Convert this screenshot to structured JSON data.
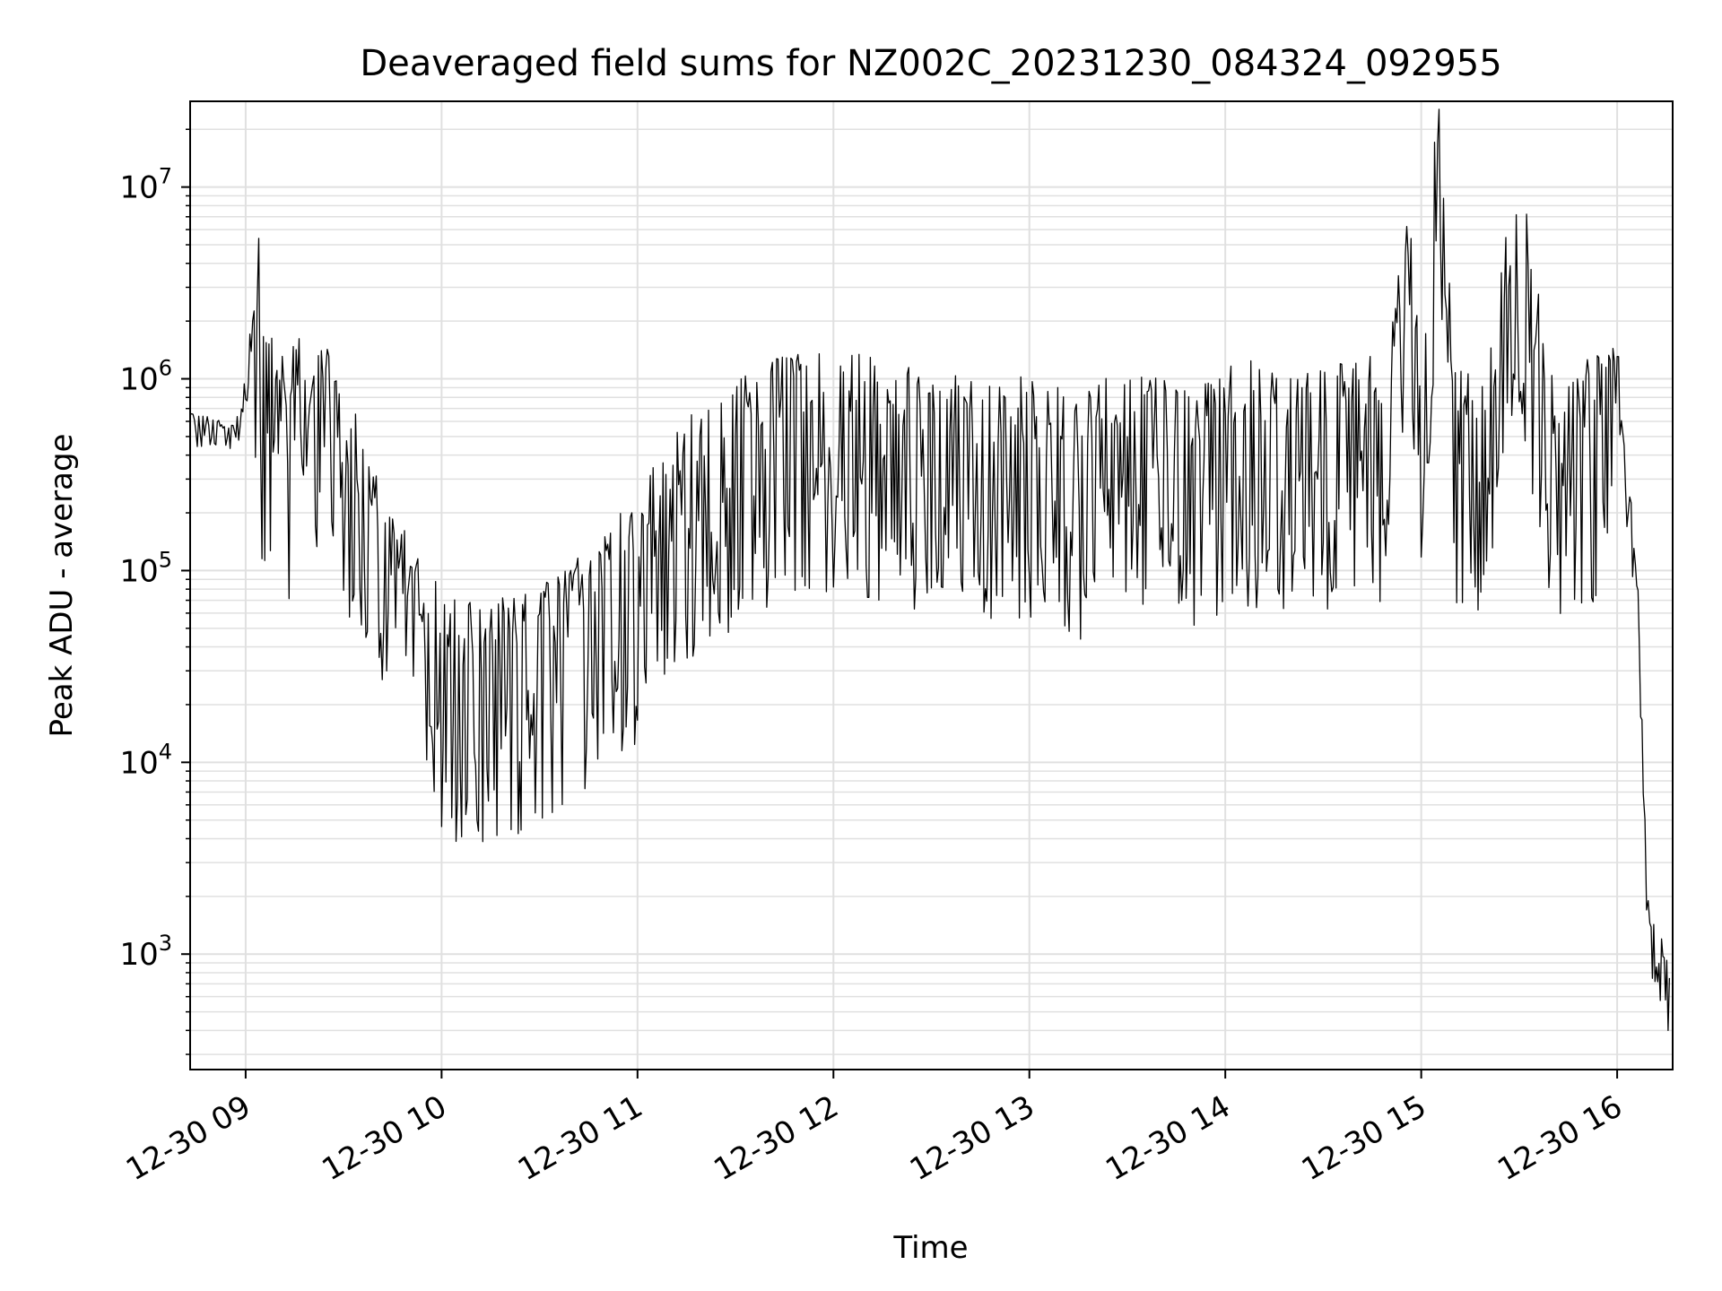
{
  "chart_data": {
    "type": "line",
    "title": "Deaveraged field sums for NZ002C_20231230_084324_092955",
    "xlabel": "Time",
    "ylabel": "Peak ADU - average",
    "yscale": "log",
    "ylim": [
      250,
      28000000
    ],
    "xlim": [
      "2023-12-30 08:43",
      "2023-12-30 16:17"
    ],
    "grid": true,
    "line_color": "#000000",
    "grid_color": "#e0e0e0",
    "x_ticks": [
      "12-30 09",
      "12-30 10",
      "12-30 11",
      "12-30 12",
      "12-30 13",
      "12-30 14",
      "12-30 15",
      "12-30 16"
    ],
    "y_ticks": [
      {
        "base": "10",
        "exp": "3"
      },
      {
        "base": "10",
        "exp": "4"
      },
      {
        "base": "10",
        "exp": "5"
      },
      {
        "base": "10",
        "exp": "6"
      },
      {
        "base": "10",
        "exp": "7"
      }
    ],
    "series": [
      {
        "x": [
          "2023-12-30 08:43",
          "2023-12-30 08:50",
          "2023-12-30 08:57",
          "2023-12-30 09:00",
          "2023-12-30 09:03",
          "2023-12-30 09:04",
          "2023-12-30 09:05",
          "2023-12-30 09:08",
          "2023-12-30 09:10",
          "2023-12-30 09:12",
          "2023-12-30 09:15",
          "2023-12-30 09:20",
          "2023-12-30 09:25",
          "2023-12-30 09:30",
          "2023-12-30 09:35",
          "2023-12-30 09:40",
          "2023-12-30 09:45",
          "2023-12-30 09:50",
          "2023-12-30 09:55",
          "2023-12-30 10:00",
          "2023-12-30 10:04",
          "2023-12-30 10:10",
          "2023-12-30 10:20",
          "2023-12-30 10:30",
          "2023-12-30 10:40",
          "2023-12-30 10:50",
          "2023-12-30 11:00",
          "2023-12-30 11:10",
          "2023-12-30 11:20",
          "2023-12-30 11:30",
          "2023-12-30 11:40",
          "2023-12-30 11:50",
          "2023-12-30 12:00",
          "2023-12-30 12:10",
          "2023-12-30 12:20",
          "2023-12-30 12:30",
          "2023-12-30 12:40",
          "2023-12-30 12:50",
          "2023-12-30 13:00",
          "2023-12-30 13:10",
          "2023-12-30 13:17",
          "2023-12-30 13:20",
          "2023-12-30 13:30",
          "2023-12-30 13:40",
          "2023-12-30 13:48",
          "2023-12-30 13:50",
          "2023-12-30 14:00",
          "2023-12-30 14:10",
          "2023-12-30 14:20",
          "2023-12-30 14:30",
          "2023-12-30 14:40",
          "2023-12-30 14:50",
          "2023-12-30 14:56",
          "2023-12-30 15:00",
          "2023-12-30 15:05",
          "2023-12-30 15:10",
          "2023-12-30 15:20",
          "2023-12-30 15:25",
          "2023-12-30 15:30",
          "2023-12-30 15:35",
          "2023-12-30 15:40",
          "2023-12-30 15:50",
          "2023-12-30 15:57",
          "2023-12-30 16:00",
          "2023-12-30 16:03",
          "2023-12-30 16:06",
          "2023-12-30 16:08",
          "2023-12-30 16:09",
          "2023-12-30 16:10",
          "2023-12-30 16:12",
          "2023-12-30 16:14",
          "2023-12-30 16:16"
        ],
        "y": [
          600000,
          550000,
          520000,
          900000,
          1200000,
          5400000,
          900000,
          700000,
          600000,
          500000,
          650000,
          700000,
          600000,
          400000,
          300000,
          150000,
          80000,
          60000,
          40000,
          35000,
          30000,
          28000,
          30000,
          35000,
          45000,
          70000,
          100000,
          200000,
          300000,
          400000,
          500000,
          550000,
          600000,
          550000,
          500000,
          480000,
          450000,
          400000,
          420000,
          380000,
          300000,
          400000,
          450000,
          420000,
          350000,
          400000,
          450000,
          500000,
          480000,
          450000,
          550000,
          500000,
          4400000,
          550000,
          16900000,
          500000,
          400000,
          2000000,
          5000000,
          1500000,
          450000,
          500000,
          550000,
          600000,
          300000,
          90000,
          10000,
          2000,
          1200,
          1100,
          900,
          750
        ]
      }
    ]
  }
}
